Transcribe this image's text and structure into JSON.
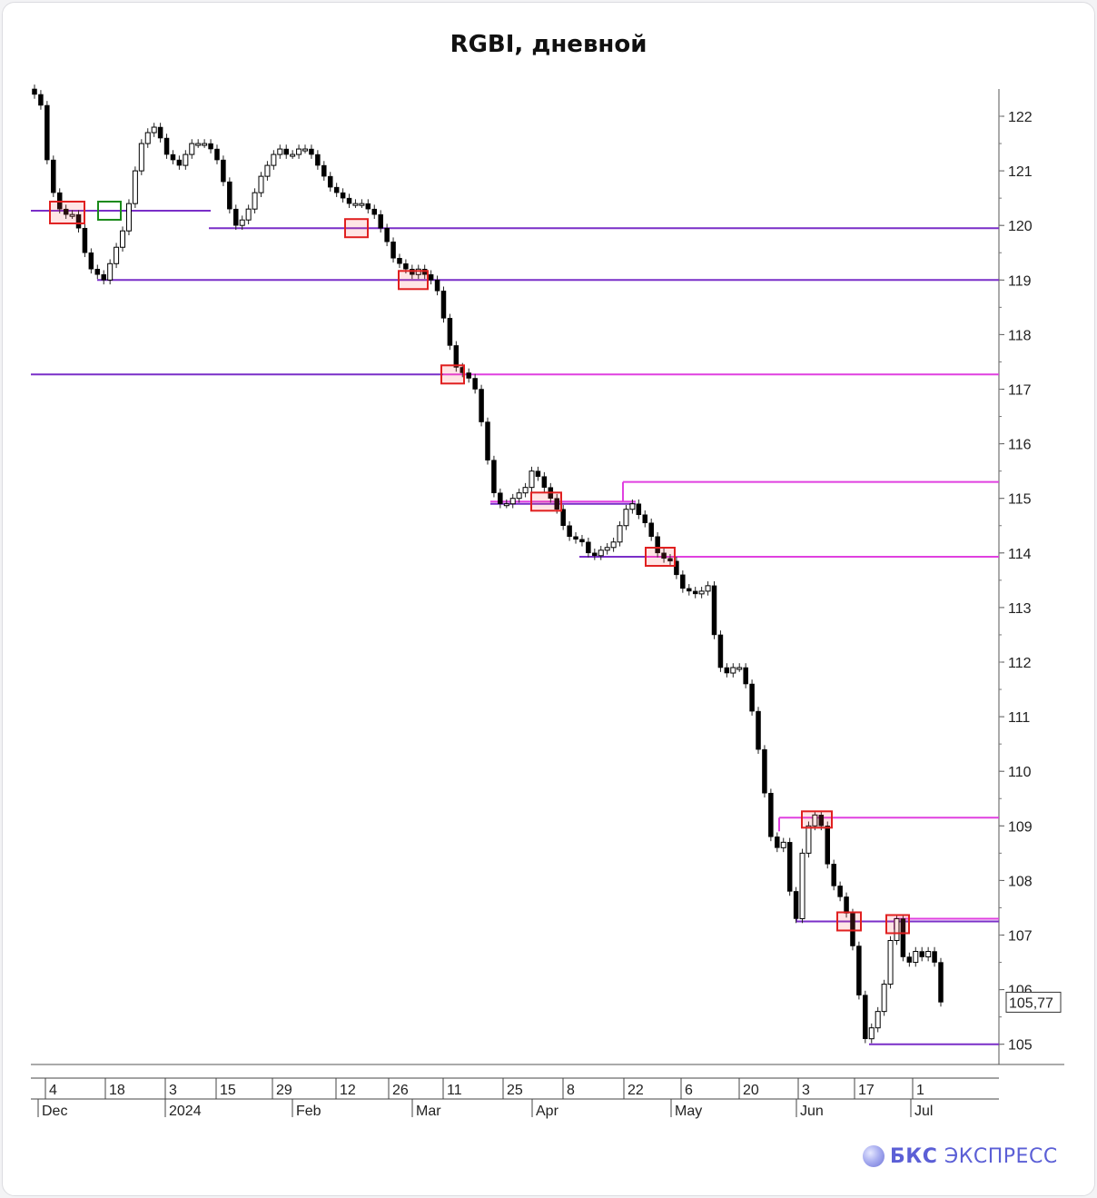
{
  "chart_data": {
    "type": "candlestick",
    "title": "RGBI, дневной",
    "ylim": [
      104.7,
      122.5
    ],
    "yticks": [
      105,
      106,
      107,
      108,
      109,
      110,
      111,
      112,
      113,
      114,
      115,
      116,
      117,
      118,
      119,
      120,
      121,
      122
    ],
    "last_price_label": "105,77",
    "last_price": 105.77,
    "x_day_ticks": [
      "4",
      "18",
      "3",
      "15",
      "29",
      "12",
      "26",
      "11",
      "25",
      "8",
      "22",
      "6",
      "20",
      "3",
      "17",
      "1"
    ],
    "x_month_labels": [
      "Dec",
      "2024",
      "Feb",
      "Mar",
      "Apr",
      "May",
      "Jun",
      "Jul"
    ],
    "levels": [
      {
        "value": 120.27,
        "color": "#7a2fc8"
      },
      {
        "value": 119.95,
        "color": "#7a2fc8"
      },
      {
        "value": 119.0,
        "color": "#7a2fc8"
      },
      {
        "value": 117.27,
        "color": "#7a2fc8"
      },
      {
        "value": 117.27,
        "color": "#e040e0"
      },
      {
        "value": 115.3,
        "color": "#e040e0"
      },
      {
        "value": 114.94,
        "color": "#e040e0"
      },
      {
        "value": 114.9,
        "color": "#7a2fc8"
      },
      {
        "value": 113.93,
        "color": "#7a2fc8"
      },
      {
        "value": 113.93,
        "color": "#e040e0"
      },
      {
        "value": 109.15,
        "color": "#e040e0"
      },
      {
        "value": 107.3,
        "color": "#e040e0"
      },
      {
        "value": 107.25,
        "color": "#7a2fc8"
      },
      {
        "value": 105.0,
        "color": "#7a2fc8"
      }
    ],
    "marker_boxes": [
      {
        "value": 120.27,
        "color": "#e02020"
      },
      {
        "value": 120.27,
        "color": "#1a8a1a"
      },
      {
        "value": 119.95,
        "color": "#e02020"
      },
      {
        "value": 119.0,
        "color": "#e02020"
      },
      {
        "value": 117.27,
        "color": "#e02020"
      },
      {
        "value": 114.94,
        "color": "#e02020"
      },
      {
        "value": 113.93,
        "color": "#e02020"
      },
      {
        "value": 109.1,
        "color": "#e02020"
      },
      {
        "value": 107.25,
        "color": "#e02020"
      },
      {
        "value": 107.2,
        "color": "#e02020"
      }
    ],
    "close_path": [
      122.4,
      122.2,
      121.2,
      120.6,
      120.3,
      120.2,
      120.2,
      119.95,
      119.5,
      119.2,
      119.1,
      119.0,
      119.3,
      119.6,
      119.9,
      120.4,
      121.0,
      121.5,
      121.7,
      121.8,
      121.6,
      121.3,
      121.2,
      121.1,
      121.3,
      121.5,
      121.5,
      121.5,
      121.4,
      121.2,
      120.8,
      120.3,
      120.0,
      120.1,
      120.3,
      120.6,
      120.9,
      121.1,
      121.3,
      121.4,
      121.3,
      121.3,
      121.4,
      121.4,
      121.3,
      121.1,
      120.9,
      120.7,
      120.6,
      120.5,
      120.4,
      120.4,
      120.4,
      120.3,
      120.2,
      119.95,
      119.7,
      119.4,
      119.3,
      119.2,
      119.1,
      119.2,
      119.1,
      119.0,
      118.8,
      118.3,
      117.8,
      117.4,
      117.3,
      117.2,
      117.0,
      116.4,
      115.7,
      115.1,
      114.9,
      114.9,
      115.0,
      115.1,
      115.2,
      115.5,
      115.4,
      115.2,
      115.0,
      114.8,
      114.5,
      114.3,
      114.25,
      114.2,
      114.0,
      113.95,
      114.05,
      114.1,
      114.2,
      114.5,
      114.8,
      114.9,
      114.7,
      114.55,
      114.3,
      114.0,
      113.9,
      113.85,
      113.6,
      113.35,
      113.3,
      113.25,
      113.3,
      113.4,
      112.5,
      111.9,
      111.8,
      111.9,
      111.9,
      111.6,
      111.1,
      110.4,
      109.6,
      108.8,
      108.6,
      108.7,
      107.8,
      107.3,
      108.5,
      109.0,
      109.2,
      109.0,
      108.3,
      107.9,
      107.7,
      107.4,
      106.8,
      105.9,
      105.1,
      105.3,
      105.6,
      106.1,
      106.9,
      107.3,
      106.6,
      106.5,
      106.7,
      106.6,
      106.7,
      106.5,
      105.77
    ]
  },
  "branding": {
    "logo_text_bold": "БКС",
    "logo_text": "ЭКСПРЕСС"
  }
}
